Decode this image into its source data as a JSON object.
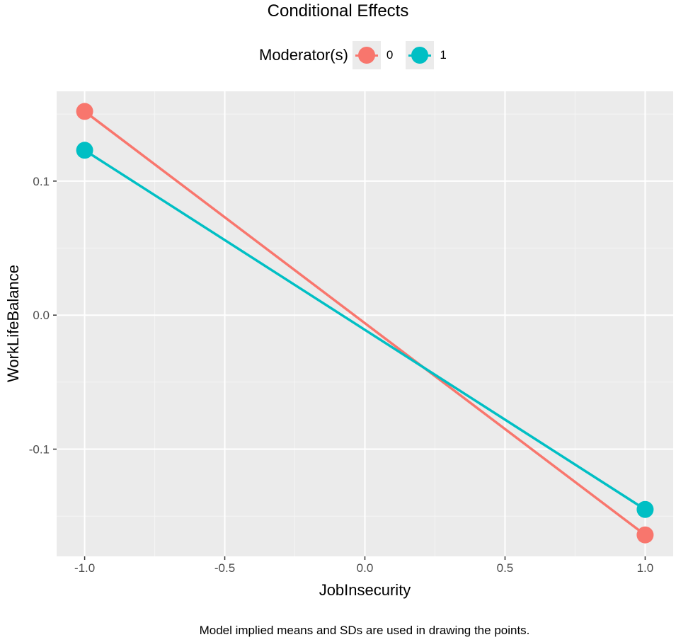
{
  "chart_data": {
    "type": "line",
    "title": "Conditional Effects",
    "xlabel": "JobInsecurity",
    "ylabel": "WorkLifeBalance",
    "caption": "Model implied means and SDs are used in drawing the points.",
    "legend": {
      "title": "Moderator(s)",
      "position": "top"
    },
    "x": [
      -1.0,
      1.0
    ],
    "xlim": [
      -1.1,
      1.1
    ],
    "ylim": [
      -0.18,
      0.167
    ],
    "x_ticks": [
      -1.0,
      -0.5,
      0.0,
      0.5,
      1.0
    ],
    "x_tick_labels": [
      "-1.0",
      "-0.5",
      "0.0",
      "0.5",
      "1.0"
    ],
    "y_ticks": [
      -0.1,
      0.0,
      0.1
    ],
    "y_tick_labels": [
      "-0.1",
      "0.0",
      "0.1"
    ],
    "x_minor_ticks": [
      -0.75,
      -0.25,
      0.25,
      0.75
    ],
    "y_minor_ticks": [
      -0.15,
      -0.05,
      0.05,
      0.15
    ],
    "grid": true,
    "series": [
      {
        "name": "0",
        "values": [
          0.152,
          -0.164
        ],
        "color": "#F8766D"
      },
      {
        "name": "1",
        "values": [
          0.123,
          -0.145
        ],
        "color": "#00BFC4"
      }
    ]
  }
}
